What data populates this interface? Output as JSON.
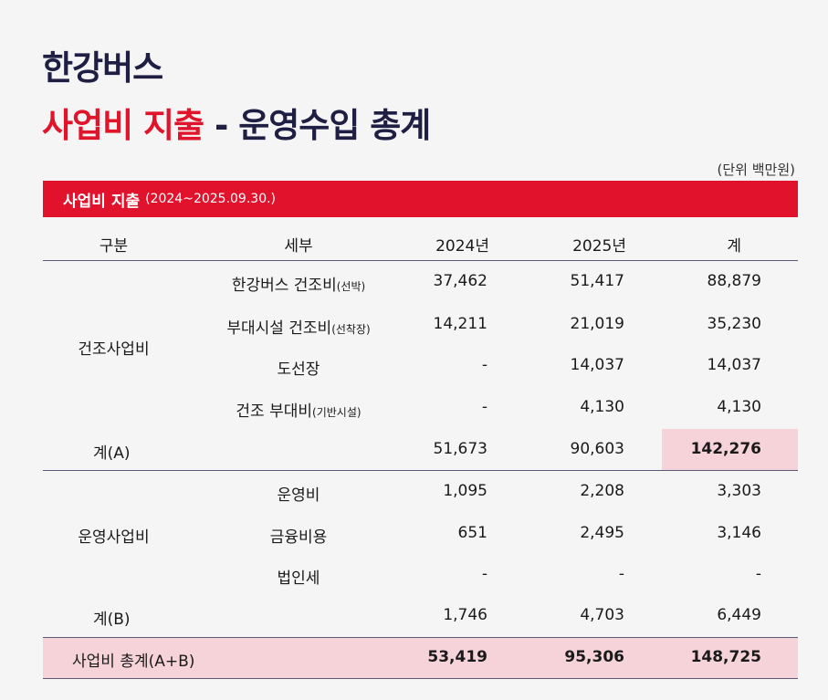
{
  "title": {
    "line1": "한강버스",
    "line2_red": "사업비 지출",
    "line2_dash": " - ",
    "line2_navy": "운영수입 총계"
  },
  "unit": "(단위 백만원)",
  "section": {
    "title": "사업비 지출",
    "period": "(2024~2025.09.30.)"
  },
  "headers": {
    "category": "구분",
    "detail": "세부",
    "y2024": "2024년",
    "y2025": "2025년",
    "total": "계"
  },
  "construction": {
    "category": "건조사업비",
    "rows": [
      {
        "detail": "한강버스 건조비",
        "note": "(선박)",
        "y2024": "37,462",
        "y2025": "51,417",
        "total": "88,879"
      },
      {
        "detail": "부대시설 건조비",
        "note": "(선착장)",
        "y2024": "14,211",
        "y2025": "21,019",
        "total": "35,230"
      },
      {
        "detail": "도선장",
        "note": "",
        "y2024": "-",
        "y2025": "14,037",
        "total": "14,037"
      },
      {
        "detail": "건조 부대비",
        "note": "(기반시설)",
        "y2024": "-",
        "y2025": "4,130",
        "total": "4,130"
      }
    ],
    "subtotal": {
      "label": "계(A)",
      "y2024": "51,673",
      "y2025": "90,603",
      "total": "142,276"
    }
  },
  "operation": {
    "category": "운영사업비",
    "rows": [
      {
        "detail": "운영비",
        "y2024": "1,095",
        "y2025": "2,208",
        "total": "3,303"
      },
      {
        "detail": "금융비용",
        "y2024": "651",
        "y2025": "2,495",
        "total": "3,146"
      },
      {
        "detail": "법인세",
        "y2024": "-",
        "y2025": "-",
        "total": "-"
      }
    ],
    "subtotal": {
      "label": "계(B)",
      "y2024": "1,746",
      "y2025": "4,703",
      "total": "6,449"
    }
  },
  "grand_total": {
    "label": "사업비 총계(A+B)",
    "y2024": "53,419",
    "y2025": "95,306",
    "total": "148,725"
  },
  "colors": {
    "red": "#e1122b",
    "navy": "#1f1f44",
    "highlight": "#f5d3d9"
  }
}
